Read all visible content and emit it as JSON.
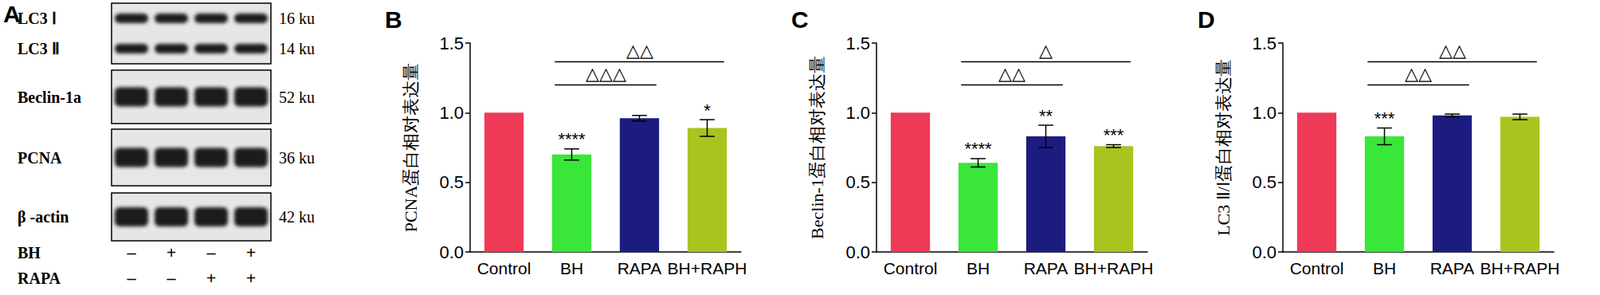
{
  "blot": {
    "title": "A",
    "boxes": [
      {
        "labels": [
          "LC3 Ⅰ",
          "LC3 Ⅱ"
        ],
        "sizes": [
          "16 ku",
          "14 ku"
        ]
      },
      {
        "labels": [
          "Beclin-1a"
        ],
        "sizes": [
          "52 ku"
        ]
      },
      {
        "labels": [
          "PCNA"
        ],
        "sizes": [
          "36 ku"
        ]
      },
      {
        "labels": [
          "β -actin"
        ],
        "sizes": [
          "42 ku"
        ]
      }
    ],
    "treatments": [
      {
        "label": "BH",
        "signs": [
          "–",
          "+",
          "–",
          "+"
        ]
      },
      {
        "label": "RAPA",
        "signs": [
          "–",
          "–",
          "+",
          "+"
        ]
      }
    ]
  },
  "chart_data": [
    {
      "type": "bar",
      "title": "B",
      "y_label": "PCNA蛋白相对表达量",
      "categories": [
        "Control",
        "BH",
        "RAPA",
        "BH+RAPH"
      ],
      "values": [
        1.0,
        0.7,
        0.96,
        0.89
      ],
      "errors": [
        0,
        0.04,
        0.02,
        0.06
      ],
      "colors": [
        "#EE3A57",
        "#39E639",
        "#1C1C80",
        "#A9C41F"
      ],
      "significance": [
        null,
        "****",
        null,
        "*"
      ],
      "annotations": [
        {
          "text": "△△△",
          "from": "BH",
          "to": "RAPA"
        },
        {
          "text": "△△",
          "from": "BH",
          "to": "BH+RAPH"
        }
      ],
      "ylim": [
        0,
        1.5
      ],
      "yticks": [
        {
          "value": 0,
          "label": "0.0"
        },
        0.5,
        {
          "value": 1,
          "label": "1.0"
        },
        1.5
      ],
      "grid": false
    },
    {
      "type": "bar",
      "title": "C",
      "y_label": "Beclin-1蛋白相对表达量",
      "categories": [
        "Control",
        "BH",
        "RAPA",
        "BH+RAPH"
      ],
      "values": [
        1.0,
        0.64,
        0.83,
        0.76
      ],
      "errors": [
        0,
        0.03,
        0.08,
        0.01
      ],
      "colors": [
        "#EE3A57",
        "#39E639",
        "#1C1C80",
        "#A9C41F"
      ],
      "significance": [
        null,
        "****",
        "**",
        "***"
      ],
      "annotations": [
        {
          "text": "△△",
          "from": "BH",
          "to": "RAPA"
        },
        {
          "text": "△",
          "from": "BH",
          "to": "BH+RAPH"
        }
      ],
      "ylim": [
        0,
        1.5
      ],
      "yticks": [
        {
          "value": 0,
          "label": "0.0"
        },
        0.5,
        {
          "value": 1,
          "label": "1.0"
        },
        1.5
      ],
      "grid": false
    },
    {
      "type": "bar",
      "title": "D",
      "y_label": "LC3 Ⅱ/Ⅰ蛋白相对表达量",
      "categories": [
        "Control",
        "BH",
        "RAPA",
        "BH+RAPH"
      ],
      "values": [
        1.0,
        0.83,
        0.98,
        0.97
      ],
      "errors": [
        0,
        0.06,
        0.01,
        0.02
      ],
      "colors": [
        "#EE3A57",
        "#39E639",
        "#1C1C80",
        "#A9C41F"
      ],
      "significance": [
        null,
        "***",
        null,
        null
      ],
      "annotations": [
        {
          "text": "△△",
          "from": "BH",
          "to": "RAPA"
        },
        {
          "text": "△△",
          "from": "BH",
          "to": "BH+RAPH"
        }
      ],
      "ylim": [
        0,
        1.5
      ],
      "yticks": [
        {
          "value": 0,
          "label": "0.0"
        },
        0.5,
        {
          "value": 1,
          "label": "1.0"
        },
        1.5
      ],
      "grid": false
    }
  ]
}
